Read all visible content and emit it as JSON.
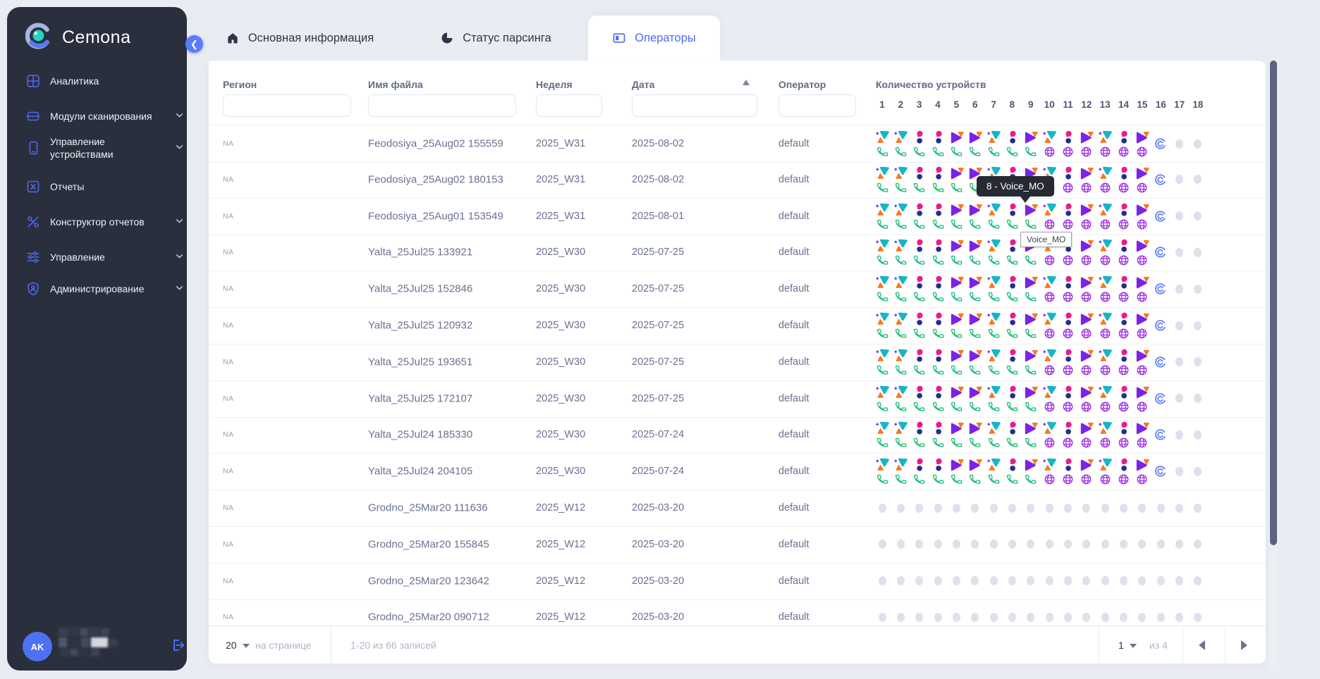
{
  "brand": "Cemona",
  "sidebar": {
    "items": [
      {
        "label": "Аналитика",
        "icon": "analytics-icon",
        "expandable": false
      },
      {
        "label": "Модули сканирования",
        "icon": "scan-modules-icon",
        "expandable": true
      },
      {
        "label": "Управление устройствами",
        "icon": "devices-icon",
        "expandable": true
      },
      {
        "label": "Отчеты",
        "icon": "reports-icon",
        "expandable": false
      },
      {
        "label": "Конструктор отчетов",
        "icon": "report-builder-icon",
        "expandable": true
      },
      {
        "label": "Управление",
        "icon": "management-icon",
        "expandable": true
      },
      {
        "label": "Администрирование",
        "icon": "administration-icon",
        "expandable": true
      }
    ],
    "user_initials": "AK"
  },
  "tabs": [
    {
      "label": "Основная информация",
      "icon": "home-icon",
      "active": false
    },
    {
      "label": "Статус парсинга",
      "icon": "pie-icon",
      "active": false
    },
    {
      "label": "Операторы",
      "icon": "columns-icon",
      "active": true
    }
  ],
  "table": {
    "columns": [
      {
        "key": "region",
        "label": "Регион"
      },
      {
        "key": "filename",
        "label": "Имя файла"
      },
      {
        "key": "week",
        "label": "Неделя"
      },
      {
        "key": "date",
        "label": "Дата",
        "sorted": "asc"
      },
      {
        "key": "operator",
        "label": "Оператор"
      }
    ],
    "devices_label": "Количество устройств",
    "device_numbers": [
      "1",
      "2",
      "3",
      "4",
      "5",
      "6",
      "7",
      "8",
      "9",
      "10",
      "11",
      "12",
      "13",
      "14",
      "15",
      "16",
      "17",
      "18"
    ],
    "device_pattern_full": [
      {
        "logo": "operator-a",
        "status": "phone"
      },
      {
        "logo": "operator-a",
        "status": "phone"
      },
      {
        "logo": "operator-b",
        "status": "phone"
      },
      {
        "logo": "operator-b",
        "status": "phone"
      },
      {
        "logo": "operator-c",
        "status": "phone"
      },
      {
        "logo": "operator-c",
        "status": "phone"
      },
      {
        "logo": "operator-a",
        "status": "phone"
      },
      {
        "logo": "operator-b",
        "status": "phone"
      },
      {
        "logo": "operator-c",
        "status": "phone"
      },
      {
        "logo": "operator-a",
        "status": "globe"
      },
      {
        "logo": "operator-b",
        "status": "globe"
      },
      {
        "logo": "operator-c",
        "status": "globe"
      },
      {
        "logo": "operator-a",
        "status": "globe"
      },
      {
        "logo": "operator-b",
        "status": "globe"
      },
      {
        "logo": "operator-c",
        "status": "globe"
      },
      {
        "logo": "cemona",
        "status": "none"
      },
      {
        "logo": "empty",
        "status": "none"
      },
      {
        "logo": "empty",
        "status": "none"
      }
    ],
    "rows": [
      {
        "region": "NA",
        "filename": "Feodosiya_25Aug02 155559",
        "week": "2025_W31",
        "date": "2025-08-02",
        "operator": "default",
        "devices": "full"
      },
      {
        "region": "NA",
        "filename": "Feodosiya_25Aug02 180153",
        "week": "2025_W31",
        "date": "2025-08-02",
        "operator": "default",
        "devices": "full"
      },
      {
        "region": "NA",
        "filename": "Feodosiya_25Aug01 153549",
        "week": "2025_W31",
        "date": "2025-08-01",
        "operator": "default",
        "devices": "full"
      },
      {
        "region": "NA",
        "filename": "Yalta_25Jul25 133921",
        "week": "2025_W30",
        "date": "2025-07-25",
        "operator": "default",
        "devices": "full"
      },
      {
        "region": "NA",
        "filename": "Yalta_25Jul25 152846",
        "week": "2025_W30",
        "date": "2025-07-25",
        "operator": "default",
        "devices": "full"
      },
      {
        "region": "NA",
        "filename": "Yalta_25Jul25 120932",
        "week": "2025_W30",
        "date": "2025-07-25",
        "operator": "default",
        "devices": "full"
      },
      {
        "region": "NA",
        "filename": "Yalta_25Jul25 193651",
        "week": "2025_W30",
        "date": "2025-07-25",
        "operator": "default",
        "devices": "full"
      },
      {
        "region": "NA",
        "filename": "Yalta_25Jul25 172107",
        "week": "2025_W30",
        "date": "2025-07-25",
        "operator": "default",
        "devices": "full"
      },
      {
        "region": "NA",
        "filename": "Yalta_25Jul24 185330",
        "week": "2025_W30",
        "date": "2025-07-24",
        "operator": "default",
        "devices": "full"
      },
      {
        "region": "NA",
        "filename": "Yalta_25Jul24 204105",
        "week": "2025_W30",
        "date": "2025-07-24",
        "operator": "default",
        "devices": "full"
      },
      {
        "region": "NA",
        "filename": "Grodno_25Mar20 111636",
        "week": "2025_W12",
        "date": "2025-03-20",
        "operator": "default",
        "devices": "empty"
      },
      {
        "region": "NA",
        "filename": "Grodno_25Mar20 155845",
        "week": "2025_W12",
        "date": "2025-03-20",
        "operator": "default",
        "devices": "empty"
      },
      {
        "region": "NA",
        "filename": "Grodno_25Mar20 123642",
        "week": "2025_W12",
        "date": "2025-03-20",
        "operator": "default",
        "devices": "empty"
      },
      {
        "region": "NA",
        "filename": "Grodno_25Mar20 090712",
        "week": "2025_W12",
        "date": "2025-03-20",
        "operator": "default",
        "devices": "empty"
      }
    ]
  },
  "tooltips": {
    "dark": "8 - Voice_MO",
    "light": "Voice_MO"
  },
  "pagination": {
    "page_size": "20",
    "page_size_suffix": "на странице",
    "range_text": "1-20 из 66 записей",
    "current_page": "1",
    "of_text": "из 4"
  },
  "colors": {
    "accent": "#4a6cf6",
    "sidebar_bg": "#2a2f3e",
    "status_phone_green": "#25c27c",
    "status_globe_purple": "#9b2de0",
    "logo_teal": "#16b5c8",
    "logo_magenta": "#ec1a8a",
    "logo_navy": "#232e8f",
    "logo_violet": "#7c22e8",
    "logo_orange": "#f9791f",
    "empty_dot": "#dde1ec",
    "tooltip_dark_bg": "#262a33"
  }
}
